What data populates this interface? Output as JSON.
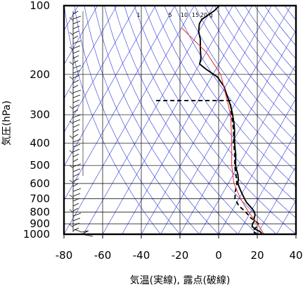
{
  "chart_data": {
    "type": "line",
    "title": "",
    "xlabel": "気温(実線), 露点(破線)",
    "ylabel": "気圧(hPa)",
    "xlim": [
      -80,
      40
    ],
    "ylim": [
      1000,
      100
    ],
    "yscale": "log",
    "grid": true,
    "x_ticks": [
      "-80",
      "-60",
      "-40",
      "-20",
      "0",
      "20",
      "40"
    ],
    "y_ticks": [
      "100",
      "200",
      "300",
      "400",
      "500",
      "600",
      "700",
      "800",
      "900",
      "1000"
    ],
    "mixing_ratio_labels": [
      "1",
      "5",
      "10",
      "15",
      "20",
      "g"
    ],
    "series": [
      {
        "role": "temperature",
        "style": "solid",
        "color": "#000000",
        "points": [
          [
            22.6,
            1000
          ],
          [
            20.8,
            975
          ],
          [
            17.6,
            950
          ],
          [
            15,
            925
          ],
          [
            14.4,
            900
          ],
          [
            14.6,
            875
          ],
          [
            13.6,
            850
          ],
          [
            13.2,
            825
          ],
          [
            12,
            800
          ],
          [
            10,
            775
          ],
          [
            7.5,
            750
          ],
          [
            5,
            725
          ],
          [
            3,
            700
          ],
          [
            1,
            675
          ],
          [
            -1,
            650
          ],
          [
            -3,
            625
          ],
          [
            -5,
            600
          ],
          [
            -6,
            575
          ],
          [
            -7.5,
            550
          ],
          [
            -9.5,
            525
          ],
          [
            -11.5,
            500
          ],
          [
            -13,
            475
          ],
          [
            -14.5,
            450
          ],
          [
            -16.5,
            425
          ],
          [
            -18.5,
            400
          ],
          [
            -20.5,
            375
          ],
          [
            -22.5,
            350
          ],
          [
            -25,
            325
          ],
          [
            -28,
            300
          ],
          [
            -31.5,
            275
          ],
          [
            -36,
            250
          ],
          [
            -41,
            225
          ],
          [
            -47,
            205
          ],
          [
            -55,
            190
          ],
          [
            -60,
            180
          ],
          [
            -61,
            170
          ],
          [
            -64,
            155
          ],
          [
            -67,
            140
          ],
          [
            -70,
            130
          ],
          [
            -72,
            120
          ],
          [
            -72,
            115
          ],
          [
            -68,
            105
          ],
          [
            -67,
            100
          ]
        ]
      },
      {
        "role": "dewpoint",
        "style": "dashed",
        "color": "#000000",
        "points": [
          [
            20,
            1000
          ],
          [
            17,
            975
          ],
          [
            17,
            950
          ],
          [
            17.5,
            925
          ],
          [
            17.5,
            900
          ],
          [
            15,
            875
          ],
          [
            12,
            850
          ],
          [
            7.5,
            800
          ],
          [
            2,
            750
          ],
          [
            -2,
            700
          ],
          [
            -4,
            650
          ],
          [
            -5.5,
            600
          ],
          [
            -8.5,
            550
          ],
          [
            -12,
            500
          ],
          [
            -15,
            450
          ],
          [
            -19,
            400
          ],
          [
            -23,
            350
          ],
          [
            -28.5,
            300
          ],
          [
            -33.5,
            260
          ],
          [
            -72,
            260
          ]
        ]
      },
      {
        "role": "reference-profile",
        "style": "solid",
        "color": "#e03030",
        "points": [
          [
            23.5,
            1000
          ],
          [
            17,
            900
          ],
          [
            9,
            800
          ],
          [
            1,
            700
          ],
          [
            -7,
            600
          ],
          [
            -13.5,
            500
          ],
          [
            -20,
            400
          ],
          [
            -29,
            300
          ],
          [
            -46,
            200
          ],
          [
            -60,
            160
          ],
          [
            -80,
            125
          ]
        ]
      }
    ]
  }
}
